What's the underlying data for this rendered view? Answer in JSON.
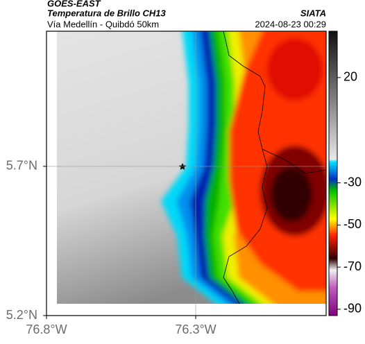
{
  "chart_data": {
    "type": "map",
    "title": "GOES-EAST",
    "subtitle": "Temperatura de Brillo CH13",
    "location": "Vía Medellín - Quibdó 50km",
    "source": "SIATA",
    "timestamp": "2024-08-23 00:29",
    "xlim": [
      -76.8,
      -75.863
    ],
    "ylim": [
      5.2,
      6.153
    ],
    "xticks": [
      {
        "value": -76.8,
        "label": "76.8°W"
      },
      {
        "value": -76.3,
        "label": "76.3°W"
      }
    ],
    "yticks": [
      {
        "value": 5.2,
        "label": "5.2°N"
      },
      {
        "value": 5.7,
        "label": "5.7°N"
      }
    ],
    "grid": true,
    "colorbar": {
      "lim": [
        -93,
        42
      ],
      "ticks": [
        20,
        -30,
        -50,
        -70,
        -90
      ]
    }
  }
}
